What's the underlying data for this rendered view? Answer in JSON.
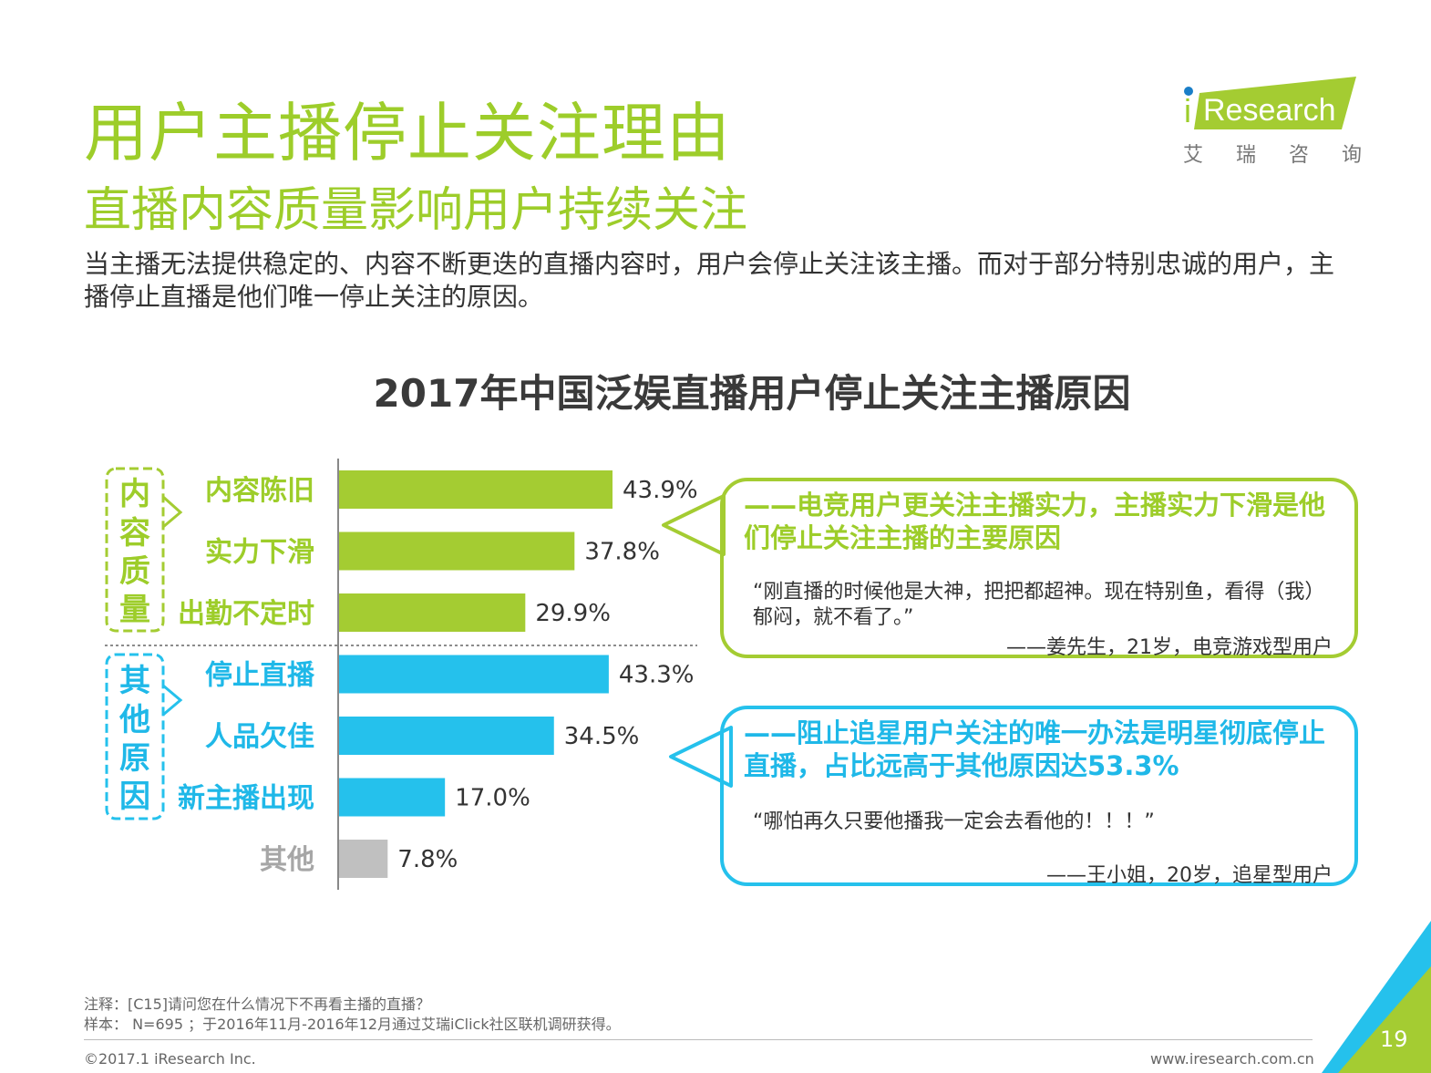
{
  "header": {
    "title": "用户主播停止关注理由",
    "subtitle": "直播内容质量影响用户持续关注",
    "description": "当主播无法提供稳定的、内容不断更迭的直播内容时，用户会停止关注该主播。而对于部分特别忠诚的用户，主播停止直播是他们唯一停止关注的原因。"
  },
  "logo": {
    "brand_i": "i",
    "brand_rest": "Research",
    "cn_chars": [
      "艾",
      "瑞",
      "咨",
      "询"
    ]
  },
  "chart_data": {
    "type": "bar",
    "orientation": "horizontal",
    "title": "2017年中国泛娱直播用户停止关注主播原因",
    "unit": "%",
    "xlim": [
      0,
      50
    ],
    "categories": [
      "内容陈旧",
      "实力下滑",
      "出勤不定时",
      "停止直播",
      "人品欠佳",
      "新主播出现",
      "其他"
    ],
    "values": [
      43.9,
      37.8,
      29.9,
      43.3,
      34.5,
      17.0,
      7.8
    ],
    "value_labels": [
      "43.9%",
      "37.8%",
      "29.9%",
      "43.3%",
      "34.5%",
      "17.0%",
      "7.8%"
    ],
    "groups": [
      {
        "name": "内容质量",
        "chars": [
          "内",
          "容",
          "质",
          "量"
        ],
        "members": [
          "内容陈旧",
          "实力下滑",
          "出勤不定时"
        ],
        "color": "#a4cc32"
      },
      {
        "name": "其他原因",
        "chars": [
          "其",
          "他",
          "原",
          "因"
        ],
        "members": [
          "停止直播",
          "人品欠佳",
          "新主播出现"
        ],
        "color": "#25c1ec"
      },
      {
        "name": "其他",
        "members": [
          "其他"
        ],
        "color": "#c0c0c0"
      }
    ],
    "bar_colors": [
      "#a4cc32",
      "#a4cc32",
      "#a4cc32",
      "#25c1ec",
      "#25c1ec",
      "#25c1ec",
      "#c0c0c0"
    ],
    "label_colors": [
      "#9dcd2a",
      "#9dcd2a",
      "#9dcd2a",
      "#1fb8e8",
      "#1fb8e8",
      "#1fb8e8",
      "#a6a6a6"
    ]
  },
  "callouts": [
    {
      "headline": "——电竞用户更关注主播实力，主播实力下滑是他们停止关注主播的主要原因",
      "quote": "“刚直播的时候他是大神，把把都超神。现在特别鱼，看得（我）郁闷，就不看了。”",
      "attribution": "——姜先生，21岁，电竞游戏型用户"
    },
    {
      "headline": "——阻止追星用户关注的唯一办法是明星彻底停止直播，占比远高于其他原因达53.3%",
      "quote": "“哪怕再久只要他播我一定会去看他的！！！”",
      "attribution": "——王小姐，20岁，追星型用户"
    }
  ],
  "footer": {
    "note": "注释：[C15]请问您在什么情况下不再看主播的直播？",
    "sample": "样本： N=695 ；于2016年11月-2016年12月通过艾瑞iClick社区联机调研获得。",
    "copyright": "©2017.1 iResearch Inc.",
    "website": "www.iresearch.com.cn",
    "page_number": "19"
  }
}
